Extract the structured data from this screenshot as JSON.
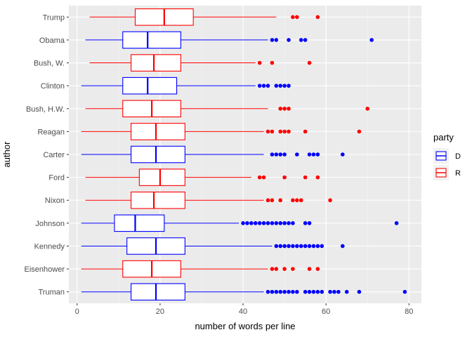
{
  "chart_data": {
    "type": "boxplot",
    "orientation": "horizontal",
    "xlabel": "number of words per line",
    "ylabel": "author",
    "xlim": [
      -2,
      83
    ],
    "x_ticks": [
      0,
      20,
      40,
      60,
      80
    ],
    "x_tick_labels": [
      "0",
      "20",
      "40",
      "60",
      "80"
    ],
    "grid": true,
    "legend": {
      "title": "party",
      "placement": "right",
      "entries": [
        {
          "label": "D",
          "color": "#0000ff"
        },
        {
          "label": "R",
          "color": "#ff0000"
        }
      ]
    },
    "categories": [
      "Trump",
      "Obama",
      "Bush, W.",
      "Clinton",
      "Bush, H.W.",
      "Reagan",
      "Carter",
      "Ford",
      "Nixon",
      "Johnson",
      "Kennedy",
      "Eisenhower",
      "Truman"
    ],
    "boxes": [
      {
        "author": "Trump",
        "party": "R",
        "whisker_low": 3,
        "q1": 14,
        "median": 21,
        "q3": 28,
        "whisker_high": 48,
        "outliers": [
          52,
          53,
          58
        ]
      },
      {
        "author": "Obama",
        "party": "D",
        "whisker_low": 2,
        "q1": 11,
        "median": 17,
        "q3": 25,
        "whisker_high": 46,
        "outliers": [
          47,
          48,
          51,
          54,
          55,
          71
        ]
      },
      {
        "author": "Bush, W.",
        "party": "R",
        "whisker_low": 3,
        "q1": 13,
        "median": 18.5,
        "q3": 25,
        "whisker_high": 43,
        "outliers": [
          44,
          47,
          56
        ]
      },
      {
        "author": "Clinton",
        "party": "D",
        "whisker_low": 1,
        "q1": 11,
        "median": 17,
        "q3": 24,
        "whisker_high": 43,
        "outliers": [
          44,
          45,
          46,
          48,
          49,
          50,
          51
        ]
      },
      {
        "author": "Bush, H.W.",
        "party": "R",
        "whisker_low": 2,
        "q1": 11,
        "median": 18,
        "q3": 25,
        "whisker_high": 46,
        "outliers": [
          49,
          50,
          51,
          70
        ]
      },
      {
        "author": "Reagan",
        "party": "R",
        "whisker_low": 1,
        "q1": 13,
        "median": 19,
        "q3": 26,
        "whisker_high": 45,
        "outliers": [
          46,
          47,
          49,
          50,
          51,
          55,
          68
        ]
      },
      {
        "author": "Carter",
        "party": "D",
        "whisker_low": 1,
        "q1": 13,
        "median": 19,
        "q3": 26,
        "whisker_high": 45,
        "outliers": [
          47,
          48,
          49,
          50,
          53,
          56,
          57,
          58,
          64
        ]
      },
      {
        "author": "Ford",
        "party": "R",
        "whisker_low": 2,
        "q1": 15,
        "median": 20,
        "q3": 26,
        "whisker_high": 42,
        "outliers": [
          44,
          45,
          50,
          55,
          58
        ]
      },
      {
        "author": "Nixon",
        "party": "R",
        "whisker_low": 2,
        "q1": 13,
        "median": 18.5,
        "q3": 26,
        "whisker_high": 45,
        "outliers": [
          46,
          47,
          49,
          52,
          53,
          54,
          61
        ]
      },
      {
        "author": "Johnson",
        "party": "D",
        "whisker_low": 1,
        "q1": 9,
        "median": 14,
        "q3": 21,
        "whisker_high": 39,
        "outliers": [
          40,
          41,
          42,
          43,
          44,
          45,
          46,
          47,
          48,
          49,
          50,
          51,
          52,
          55,
          56,
          77
        ]
      },
      {
        "author": "Kennedy",
        "party": "D",
        "whisker_low": 1,
        "q1": 12,
        "median": 19,
        "q3": 26,
        "whisker_high": 47,
        "outliers": [
          48,
          49,
          50,
          51,
          52,
          53,
          54,
          55,
          56,
          57,
          58,
          59,
          64
        ]
      },
      {
        "author": "Eisenhower",
        "party": "R",
        "whisker_low": 1,
        "q1": 11,
        "median": 18,
        "q3": 25,
        "whisker_high": 46,
        "outliers": [
          47,
          48,
          50,
          52,
          56,
          58
        ]
      },
      {
        "author": "Truman",
        "party": "D",
        "whisker_low": 1,
        "q1": 13,
        "median": 19,
        "q3": 26,
        "whisker_high": 45,
        "outliers": [
          46,
          47,
          48,
          49,
          50,
          51,
          52,
          53,
          55,
          56,
          57,
          58,
          59,
          61,
          62,
          63,
          65,
          68,
          79
        ]
      }
    ]
  }
}
